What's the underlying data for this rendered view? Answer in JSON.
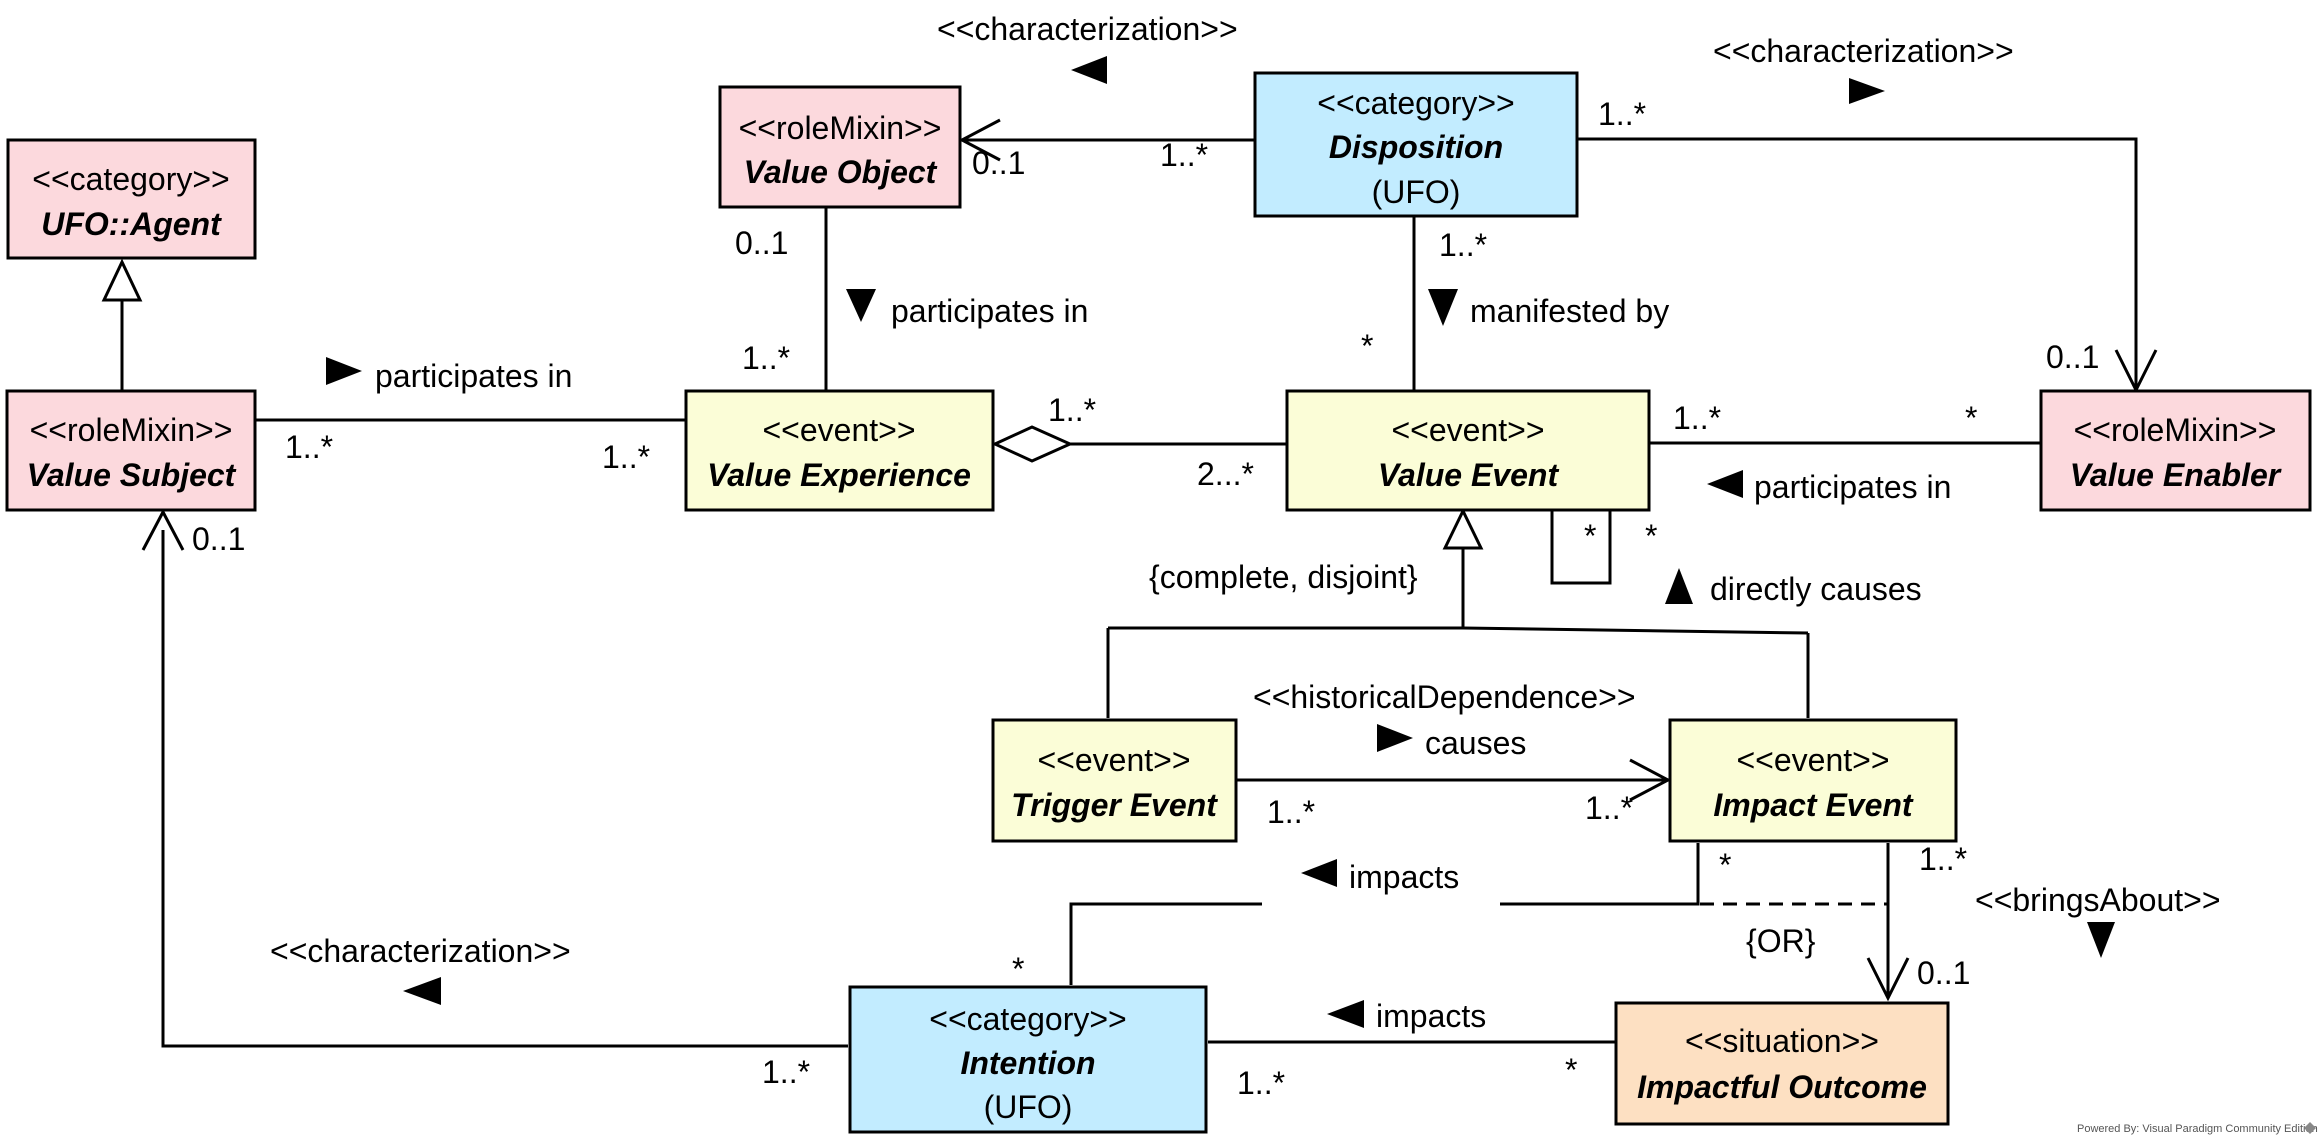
{
  "colors": {
    "pink": "#fcd9dd",
    "blue": "#c2ecff",
    "yellow": "#fbfdd7",
    "orange": "#fde0c2",
    "stroke": "#000000"
  },
  "classes": {
    "ufo_agent": {
      "stereotype": "<<category>>",
      "name": "UFO::Agent"
    },
    "value_object": {
      "stereotype": "<<roleMixin>>",
      "name": "Value Object"
    },
    "disposition": {
      "stereotype": "<<category>>",
      "name": "Disposition",
      "sub": "(UFO)"
    },
    "value_subject": {
      "stereotype": "<<roleMixin>>",
      "name": "Value Subject"
    },
    "value_experience": {
      "stereotype": "<<event>>",
      "name": "Value Experience"
    },
    "value_event": {
      "stereotype": "<<event>>",
      "name": "Value Event"
    },
    "value_enabler": {
      "stereotype": "<<roleMixin>>",
      "name": "Value Enabler"
    },
    "trigger_event": {
      "stereotype": "<<event>>",
      "name": "Trigger Event"
    },
    "impact_event": {
      "stereotype": "<<event>>",
      "name": "Impact Event"
    },
    "intention": {
      "stereotype": "<<category>>",
      "name": "Intention",
      "sub": "(UFO)"
    },
    "impactful_outcome": {
      "stereotype": "<<situation>>",
      "name": "Impactful Outcome"
    }
  },
  "labels": {
    "char_top_left": "<<characterization>>",
    "char_top_right": "<<characterization>>",
    "char_bottom_left": "<<characterization>>",
    "participates_vo": "participates in",
    "participates_vs": "participates in",
    "participates_ve": "participates in",
    "manifested_by": "manifested by",
    "complete_disjoint": "{complete, disjoint}",
    "directly_causes": "directly causes",
    "historical_dependence": "<<historicalDependence>>",
    "causes": "causes",
    "impacts_top": "impacts",
    "impacts_bottom": "impacts",
    "or_constraint": "{OR}",
    "brings_about": "<<bringsAbout>>"
  },
  "multiplicities": {
    "disp_vo_a": "1..*",
    "disp_vo_b": "0..1",
    "disp_enabler_a": "1..*",
    "disp_enabler_b": "0..1",
    "vo_top": "0..1",
    "vo_bottom": "1..*",
    "disp_down": "1..*",
    "vevent_up": "*",
    "vs_right": "1..*",
    "vx_left": "1..*",
    "vx_right": "1..*",
    "vevent_left": "2...*",
    "vevent_right": "1..*",
    "enabler_left": "*",
    "self_a": "*",
    "self_b": "*",
    "vs_bottom": "0..1",
    "trigger_right": "1..*",
    "impact_left": "1..*",
    "impact_down_a": "*",
    "impact_down_b": "1..*",
    "outcome_top": "0..1",
    "intention_top": "*",
    "intention_left": "1..*",
    "intention_right": "1..*",
    "outcome_left": "*"
  },
  "footer": {
    "credit": "Powered By: Visual Paradigm Community Edition"
  }
}
